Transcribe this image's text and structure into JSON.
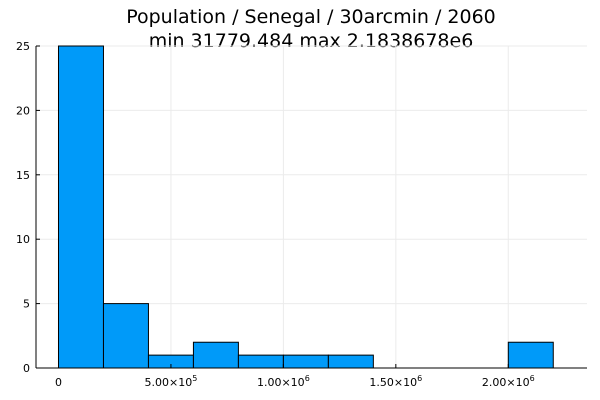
{
  "chart_data": {
    "type": "bar",
    "title": "Population / Senegal / 30arcmin / 2060",
    "subtitle": "min 31779.484  max 2.1838678e6",
    "xlabel": "",
    "ylabel": "",
    "bins": [
      {
        "start": 0,
        "end": 200000,
        "count": 25
      },
      {
        "start": 200000,
        "end": 400000,
        "count": 5
      },
      {
        "start": 400000,
        "end": 600000,
        "count": 1
      },
      {
        "start": 600000,
        "end": 800000,
        "count": 2
      },
      {
        "start": 800000,
        "end": 1000000,
        "count": 1
      },
      {
        "start": 1000000,
        "end": 1200000,
        "count": 1
      },
      {
        "start": 1200000,
        "end": 1400000,
        "count": 1
      },
      {
        "start": 1400000,
        "end": 1600000,
        "count": 0
      },
      {
        "start": 1600000,
        "end": 1800000,
        "count": 0
      },
      {
        "start": 1800000,
        "end": 2000000,
        "count": 0
      },
      {
        "start": 2000000,
        "end": 2200000,
        "count": 2
      }
    ],
    "xlim": [
      -100000,
      2350000
    ],
    "ylim": [
      0,
      25
    ],
    "xticks": [
      {
        "value": 0,
        "mantissa": "0",
        "exponent": ""
      },
      {
        "value": 500000,
        "mantissa": "5.00×10",
        "exponent": "5"
      },
      {
        "value": 1000000,
        "mantissa": "1.00×10",
        "exponent": "6"
      },
      {
        "value": 1500000,
        "mantissa": "1.50×10",
        "exponent": "6"
      },
      {
        "value": 2000000,
        "mantissa": "2.00×10",
        "exponent": "6"
      }
    ],
    "yticks": [
      0,
      5,
      10,
      15,
      20,
      25
    ],
    "grid": true,
    "legend": "none",
    "colors": {
      "bar": "#009af9",
      "edge": "#000000",
      "grid": "#ebebeb",
      "axis": "#000000"
    }
  }
}
